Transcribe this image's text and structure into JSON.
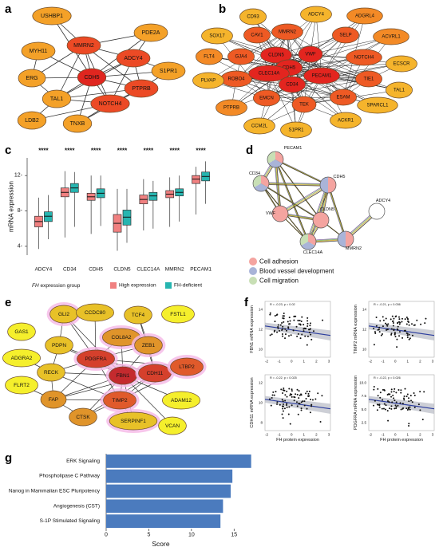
{
  "panel_labels": {
    "a": "a",
    "b": "b",
    "c": "c",
    "d": "d",
    "e": "e",
    "f": "f",
    "g": "g"
  },
  "network_a": {
    "nodes": [
      "USHBP1",
      "PDE2A",
      "MMRN2",
      "MYH11",
      "ADCY4",
      "S1PR1",
      "ERG",
      "CDH5",
      "PTPRB",
      "TAL1",
      "NOTCH4",
      "LDB2",
      "TNXB"
    ],
    "hub_nodes": [
      "MMRN2",
      "ADCY4",
      "CDH5",
      "PTPRB",
      "NOTCH4"
    ]
  },
  "network_b": {
    "nodes": [
      "CD93",
      "ADCY4",
      "ADGRL4",
      "SOX17",
      "CAV1",
      "MMRN2",
      "SELP",
      "ACVRL1",
      "FLT4",
      "GJA4",
      "CLDN5",
      "VWF",
      "NOTCH4",
      "ECSCR",
      "ROBO4",
      "CDH5",
      "PECAM1",
      "TIE1",
      "PLVAP",
      "CLEC14A",
      "CD34",
      "TAL1",
      "PTPRB",
      "EMCN",
      "TEK",
      "ESAM",
      "SPARCL1",
      "CCM2L",
      "S1PR1",
      "ACKR1"
    ]
  },
  "chart_data": {
    "type": "box",
    "categories": [
      "ADCY4",
      "CD34",
      "CDH5",
      "CLDN5",
      "CLEC14A",
      "MMRN2",
      "PECAM1"
    ],
    "category_labels": [
      "ADCY4",
      "CD34",
      "CDH5",
      "CLDN5",
      "CLEC14A",
      "MMRN2",
      "PECAM1"
    ],
    "ylabel": "mRNA expression",
    "ylim": [
      3,
      14
    ],
    "yticks": [
      4,
      8,
      12
    ],
    "significance": [
      "****",
      "****",
      "****",
      "****",
      "****",
      "****",
      "****"
    ],
    "legend_title_gene": "FH",
    "legend_title_rest": " expression group",
    "series": [
      {
        "name": "High expression",
        "color": "#f08080",
        "boxes": [
          {
            "min": 3.7,
            "q1": 6.2,
            "median": 6.8,
            "q3": 7.4,
            "max": 9.5
          },
          {
            "min": 5.0,
            "q1": 9.6,
            "median": 10.1,
            "q3": 10.6,
            "max": 12.5
          },
          {
            "min": 5.4,
            "q1": 9.2,
            "median": 9.6,
            "q3": 10.0,
            "max": 12.0
          },
          {
            "min": 3.5,
            "q1": 5.6,
            "median": 6.6,
            "q3": 7.6,
            "max": 10.5
          },
          {
            "min": 5.8,
            "q1": 8.8,
            "median": 9.3,
            "q3": 9.8,
            "max": 11.6
          },
          {
            "min": 6.2,
            "q1": 9.5,
            "median": 9.9,
            "q3": 10.3,
            "max": 11.8
          },
          {
            "min": 7.6,
            "q1": 11.1,
            "median": 11.6,
            "q3": 12.0,
            "max": 13.0
          }
        ]
      },
      {
        "name": "FH-deficient",
        "color": "#26b5b0",
        "boxes": [
          {
            "min": 4.8,
            "q1": 6.8,
            "median": 7.4,
            "q3": 7.9,
            "max": 9.8
          },
          {
            "min": 6.2,
            "q1": 10.1,
            "median": 10.6,
            "q3": 11.1,
            "max": 12.4
          },
          {
            "min": 6.3,
            "q1": 9.5,
            "median": 10.0,
            "q3": 10.5,
            "max": 12.0
          },
          {
            "min": 4.4,
            "q1": 6.4,
            "median": 7.3,
            "q3": 8.1,
            "max": 10.5
          },
          {
            "min": 6.0,
            "q1": 9.2,
            "median": 9.7,
            "q3": 10.1,
            "max": 11.4
          },
          {
            "min": 6.8,
            "q1": 9.7,
            "median": 10.1,
            "q3": 10.5,
            "max": 12.0
          },
          {
            "min": 8.8,
            "q1": 11.4,
            "median": 11.9,
            "q3": 12.4,
            "max": 13.6
          }
        ]
      }
    ]
  },
  "network_d": {
    "nodes": [
      "PECAM1",
      "CD34",
      "CDH5",
      "VWF",
      "CLDN5",
      "ADCY4",
      "CLEC14A",
      "MMRN2"
    ],
    "legend": [
      {
        "label": "Cell adhesion",
        "color": "#f4a4a0"
      },
      {
        "label": "Blood vessel development",
        "color": "#a9b4d8"
      },
      {
        "label": "Cell migration",
        "color": "#c8dfb5"
      }
    ]
  },
  "network_e": {
    "nodes": [
      "GLI2",
      "CCDC80",
      "TCF4",
      "FSTL1",
      "GAS1",
      "PDPN",
      "COL8A2",
      "ZEB1",
      "ADGRA2",
      "RECK",
      "PDGFRA",
      "FBN1",
      "CDH11",
      "LTBP2",
      "FLRT2",
      "FAP",
      "TIMP2",
      "ADAM12",
      "CTSK",
      "SERPINF1",
      "VCAN"
    ]
  },
  "scatter_f": {
    "plots": [
      {
        "ylabel": "FBN1  mRNA expression",
        "stat": "R = -0.23, p = 0.02",
        "yticks": [
          "10",
          "12",
          "14"
        ],
        "xticks": [
          "-2",
          "-1",
          "0",
          "1",
          "2",
          "3"
        ]
      },
      {
        "ylabel": "TIMP2  mRNA expression",
        "stat": "R = -0.21, p = 0.036",
        "yticks": [
          "10",
          "12",
          "14"
        ],
        "xticks": [
          "-2",
          "-1",
          "0",
          "1",
          "2",
          "3"
        ]
      },
      {
        "ylabel": "CDH11  mRNA expression",
        "stat": "R = -0.22, p = 0.025",
        "yticks": [
          "8",
          "10",
          "12"
        ],
        "xticks": [
          "-2",
          "-1",
          "0",
          "1",
          "2",
          "3"
        ]
      },
      {
        "ylabel": "PDGFRA  mRNA expression",
        "stat": "R = -0.22, p = 0.026",
        "yticks": [
          "2.5",
          "5.0",
          "7.5",
          "10.0"
        ],
        "xticks": [
          "-2",
          "-1",
          "0",
          "1",
          "2",
          "3"
        ]
      }
    ],
    "xlabel": "FH protein expression"
  },
  "bar_g": {
    "categories": [
      "ERK Signaling",
      "Phospholipase C Pathway",
      "Nanog in Mammalian ESC Pluripotency",
      "Angiogenesis (CST)",
      "S-1P Stimulated Signaling"
    ],
    "values": [
      17.0,
      14.8,
      14.6,
      13.7,
      13.4
    ],
    "xlabel": "Score",
    "xticks": [
      0,
      5,
      10,
      15
    ],
    "xlim": [
      0,
      17.5
    ],
    "bar_color": "#4b7bbe"
  }
}
